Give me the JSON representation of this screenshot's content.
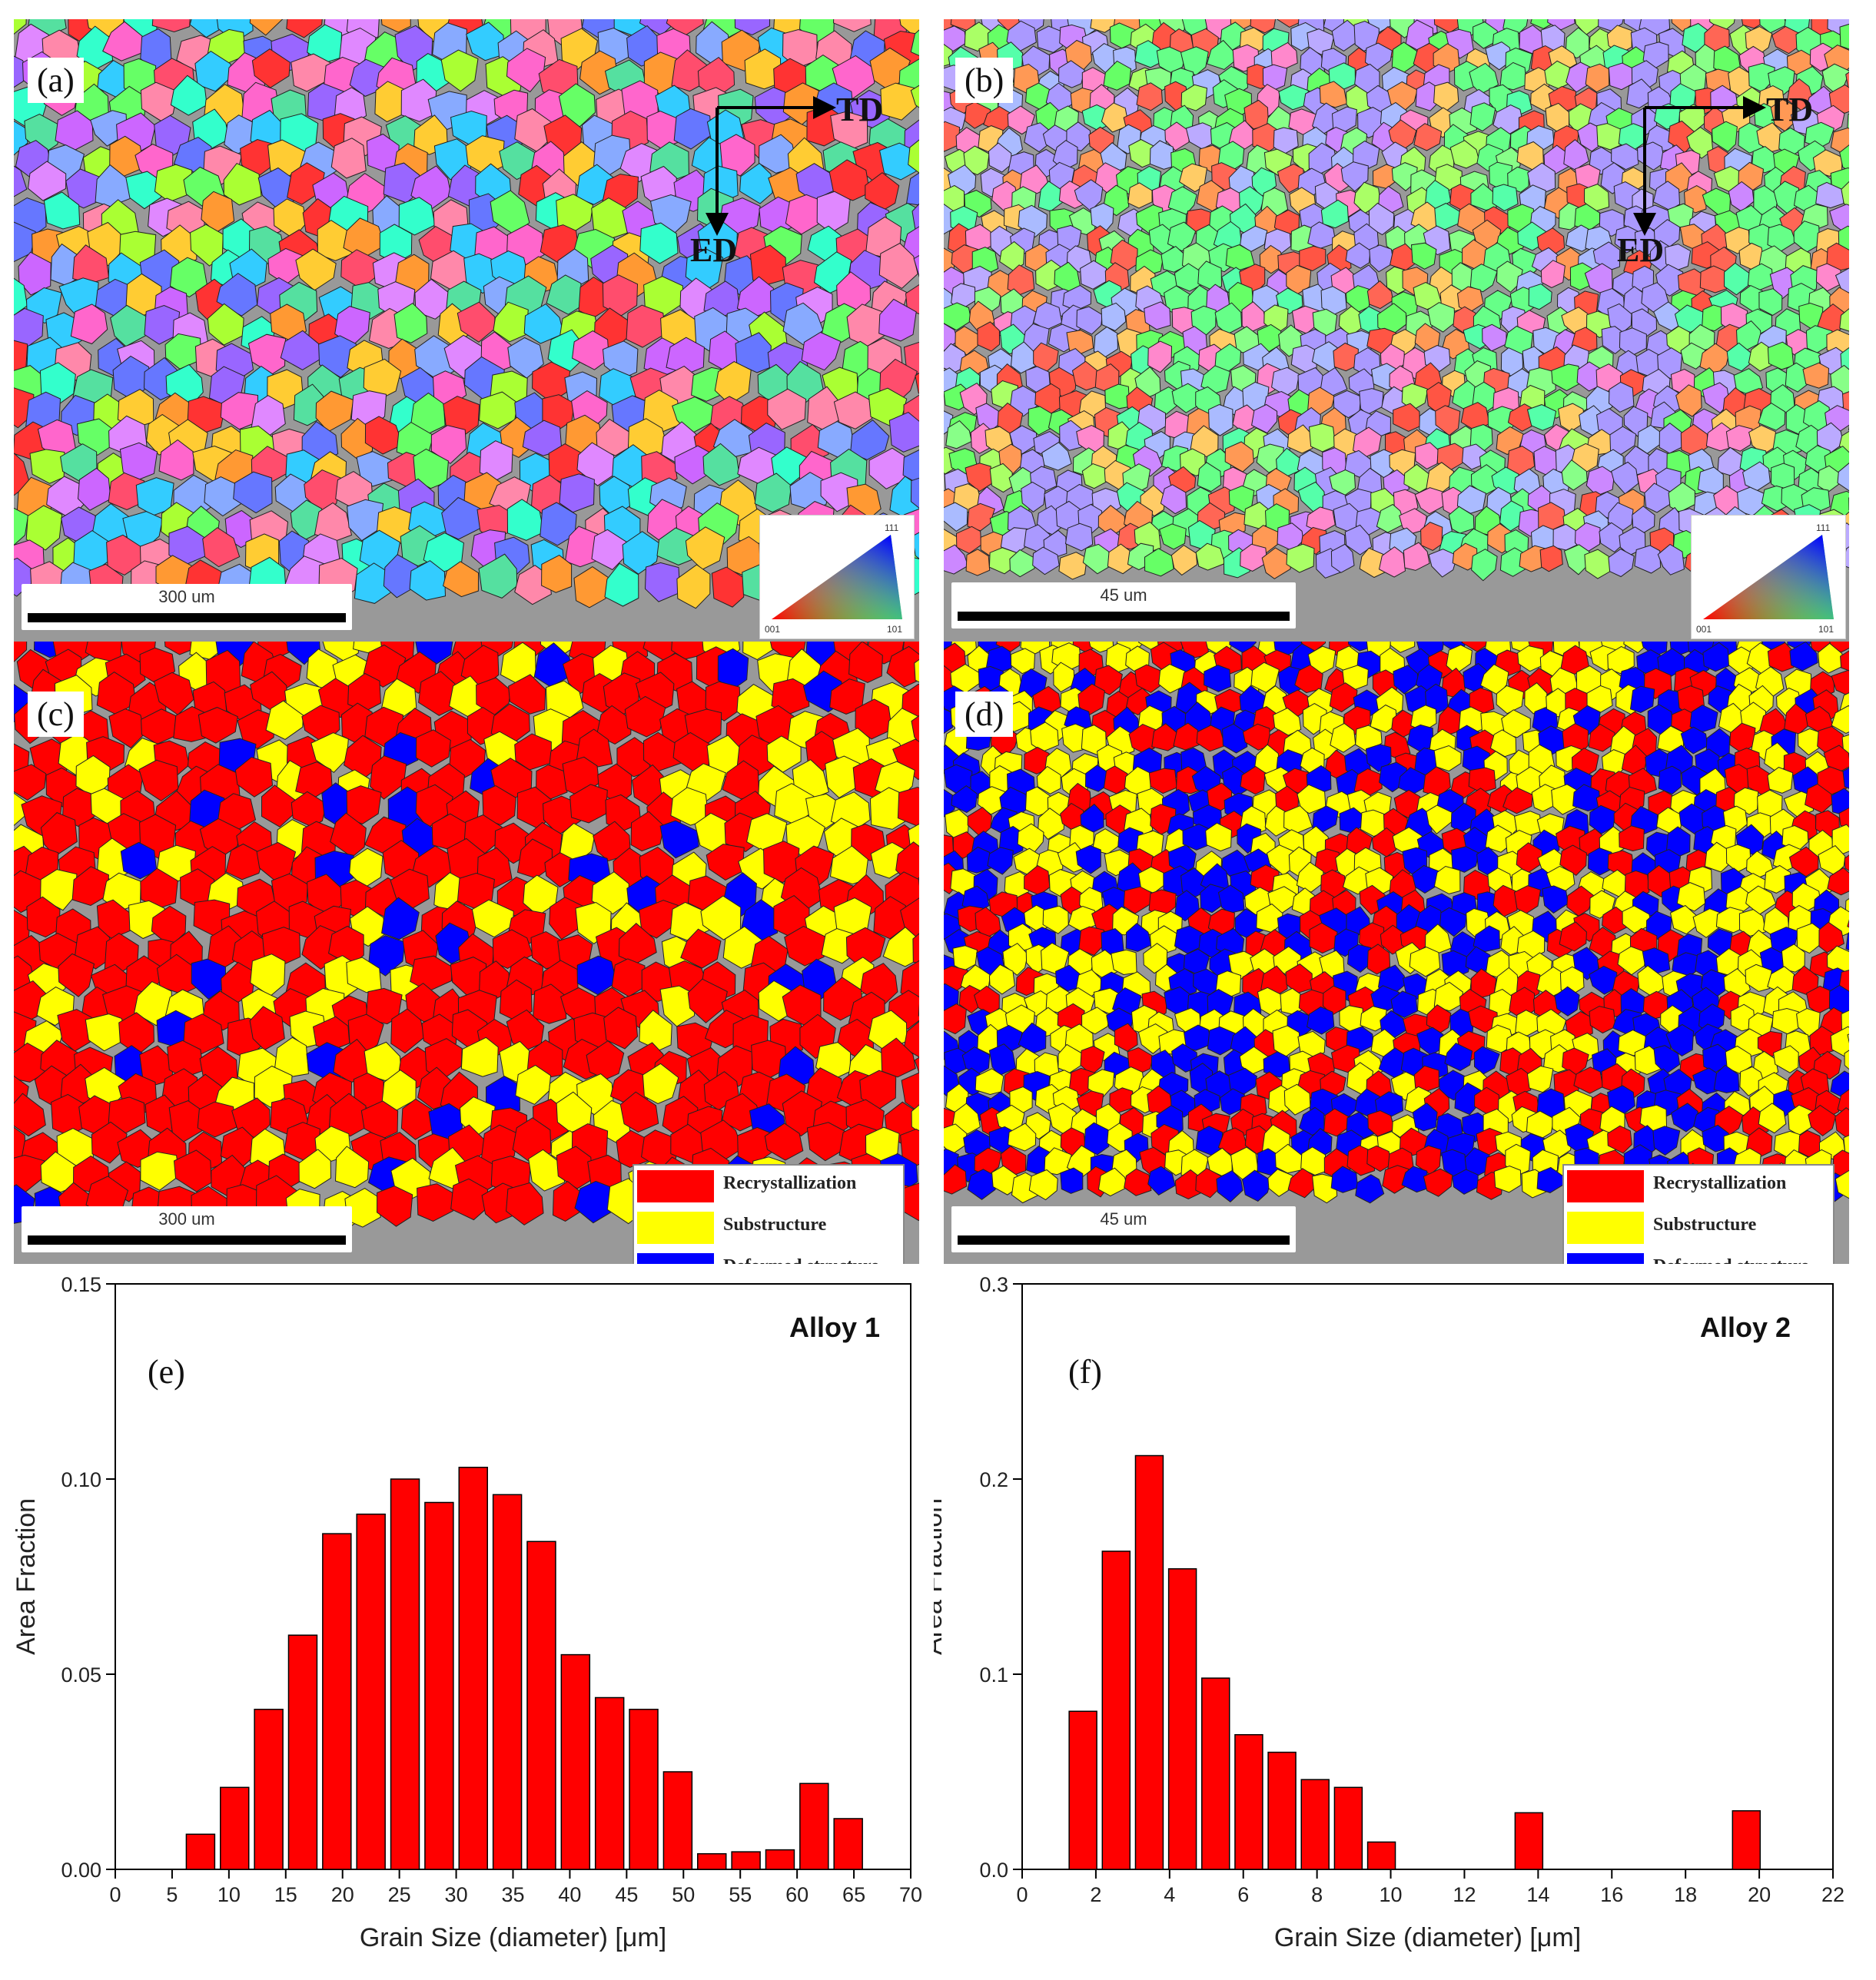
{
  "colors": {
    "recrystallization": "#ff0000",
    "substructure": "#ffff00",
    "deformed": "#0000ff",
    "bar": "#ff0000"
  },
  "panels": {
    "a": {
      "label": "(a)",
      "scale": "300 um",
      "arrow_right": "TD",
      "arrow_down": "ED",
      "ipf": {
        "top": "111",
        "left": "001",
        "right": "101"
      }
    },
    "b": {
      "label": "(b)",
      "scale": "45 um",
      "arrow_right": "TD",
      "arrow_down": "ED",
      "ipf": {
        "top": "111",
        "left": "001",
        "right": "101"
      }
    },
    "c": {
      "label": "(c)",
      "scale": "300 um"
    },
    "d": {
      "label": "(d)",
      "scale": "45 um"
    }
  },
  "legend": {
    "items": [
      "Recrystallization",
      "Substructure",
      "Deformed structure"
    ]
  },
  "chart_data": [
    {
      "type": "bar",
      "panel_label": "(e)",
      "title": "Alloy 1",
      "xlabel": "Grain Size (diameter) [μm]",
      "ylabel": "Area Fraction",
      "xlim": [
        0,
        70
      ],
      "ylim": [
        0,
        0.15
      ],
      "bar_width": 2.5,
      "x_ticks": [
        0,
        5,
        10,
        15,
        20,
        25,
        30,
        35,
        40,
        45,
        50,
        55,
        60,
        65,
        70
      ],
      "x_tick_labels": [
        "0",
        "5",
        "10",
        "15",
        "20",
        "25",
        "30",
        "35",
        "40",
        "45",
        "50",
        "55",
        "60",
        "65",
        "70"
      ],
      "y_ticks": [
        0,
        0.05,
        0.1,
        0.15
      ],
      "y_tick_labels": [
        "0.00",
        "0.05",
        "0.10",
        "0.15"
      ],
      "x": [
        7.5,
        10.5,
        13.5,
        16.5,
        19.5,
        22.5,
        25.5,
        28.5,
        31.5,
        34.5,
        37.5,
        40.5,
        43.5,
        46.5,
        49.5,
        52.5,
        55.5,
        58.5,
        61.5,
        64.5,
        67.5
      ],
      "values": [
        0.009,
        0.021,
        0.041,
        0.06,
        0.086,
        0.091,
        0.1,
        0.094,
        0.103,
        0.096,
        0.084,
        0.055,
        0.044,
        0.041,
        0.025,
        0.004,
        0.0045,
        0.005,
        0.022,
        0.013,
        0.0
      ]
    },
    {
      "type": "bar",
      "panel_label": "(f)",
      "title": "Alloy 2",
      "xlabel": "Grain Size (diameter) [μm]",
      "ylabel": "Area Fraction",
      "xlim": [
        0,
        22
      ],
      "ylim": [
        0,
        0.3
      ],
      "bar_width": 0.75,
      "x_ticks": [
        0,
        2,
        4,
        6,
        8,
        10,
        12,
        14,
        16,
        18,
        20,
        22
      ],
      "x_tick_labels": [
        "0",
        "2",
        "4",
        "6",
        "8",
        "10",
        "12",
        "14",
        "16",
        "18",
        "20",
        "22"
      ],
      "y_ticks": [
        0,
        0.1,
        0.2,
        0.3
      ],
      "y_tick_labels": [
        "0.0",
        "0.1",
        "0.2",
        "0.3"
      ],
      "x": [
        1.65,
        2.55,
        3.45,
        4.35,
        5.25,
        6.15,
        7.05,
        7.95,
        8.85,
        9.75,
        13.75,
        19.65
      ],
      "values": [
        0.081,
        0.163,
        0.212,
        0.154,
        0.098,
        0.069,
        0.06,
        0.046,
        0.042,
        0.014,
        0.029,
        0.03
      ]
    }
  ]
}
